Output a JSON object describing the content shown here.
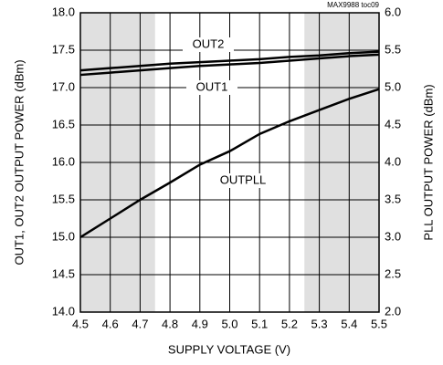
{
  "chart_data": {
    "type": "line",
    "annotation": "MAX9988 toc09",
    "xlabel": "SUPPLY VOLTAGE (V)",
    "ylabel": "OUT1, OUT2 OUTPUT POWER (dBm)",
    "y2label": "PLL OUTPUT POWER (dBm)",
    "x": [
      4.5,
      4.6,
      4.7,
      4.8,
      4.9,
      5.0,
      5.1,
      5.2,
      5.3,
      5.4,
      5.5
    ],
    "series": [
      {
        "name": "OUT2",
        "color": "#000000",
        "values": [
          17.23,
          17.26,
          17.29,
          17.32,
          17.34,
          17.36,
          17.38,
          17.41,
          17.43,
          17.46,
          17.48
        ]
      },
      {
        "name": "OUT1",
        "color": "#000000",
        "values": [
          17.17,
          17.2,
          17.23,
          17.26,
          17.29,
          17.31,
          17.33,
          17.36,
          17.39,
          17.42,
          17.44
        ]
      },
      {
        "name": "OUTPLL",
        "color": "#000000",
        "axis": "y2",
        "values": [
          3.0,
          3.25,
          3.5,
          3.73,
          3.97,
          4.15,
          4.38,
          4.55,
          4.7,
          4.85,
          4.98
        ]
      }
    ],
    "shaded_x": [
      [
        4.5,
        4.75
      ],
      [
        5.25,
        5.5
      ]
    ],
    "shade_color": "#e0e0e0",
    "xlim": [
      4.5,
      5.5
    ],
    "xticks": [
      4.5,
      4.6,
      4.7,
      4.8,
      4.9,
      {
        "value": 5,
        "label": "5.0"
      },
      5.1,
      5.2,
      5.3,
      5.4,
      5.5
    ],
    "ylim": [
      14,
      18
    ],
    "yticks": [
      {
        "value": 14,
        "label": "14.0"
      },
      14.5,
      {
        "value": 15,
        "label": "15.0"
      },
      15.5,
      {
        "value": 16,
        "label": "16.0"
      },
      16.5,
      {
        "value": 17,
        "label": "17.0"
      },
      17.5,
      {
        "value": 18,
        "label": "18.0"
      }
    ],
    "y2lim": [
      2,
      6
    ],
    "y2ticks": [
      {
        "value": 2,
        "label": "2.0"
      },
      2.5,
      {
        "value": 3,
        "label": "3.0"
      },
      3.5,
      {
        "value": 4,
        "label": "4.0"
      },
      4.5,
      {
        "value": 5,
        "label": "5.0"
      },
      5.5,
      {
        "value": 6,
        "label": "6.0"
      }
    ],
    "grid": true
  }
}
